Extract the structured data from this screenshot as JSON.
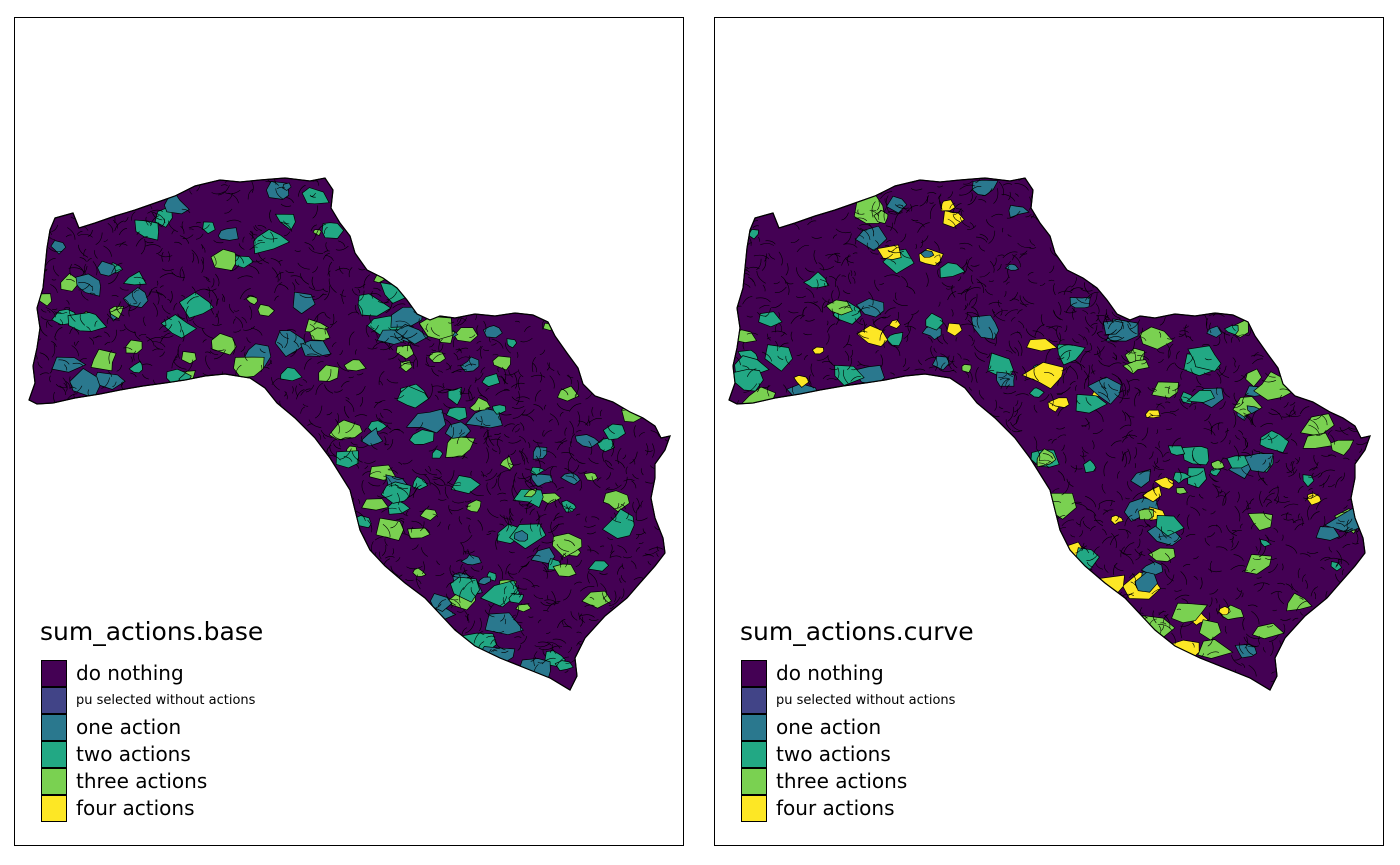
{
  "legend_items": [
    {
      "label": "do nothing",
      "color": "#440154"
    },
    {
      "label": "pu selected without actions",
      "color": "#414487"
    },
    {
      "label": "one action",
      "color": "#2A788E"
    },
    {
      "label": "two actions",
      "color": "#22A884"
    },
    {
      "label": "three actions",
      "color": "#7AD151"
    },
    {
      "label": "four actions",
      "color": "#FDE725"
    }
  ],
  "panels": [
    {
      "title": "sum_actions.base",
      "accent_colors": [
        "#2A788E",
        "#22A884",
        "#7AD151"
      ]
    },
    {
      "title": "sum_actions.curve",
      "accent_colors": [
        "#7AD151",
        "#FDE725",
        "#22A884",
        "#2A788E"
      ]
    }
  ],
  "map_base_color": "#440154",
  "outline_color": "#000000"
}
